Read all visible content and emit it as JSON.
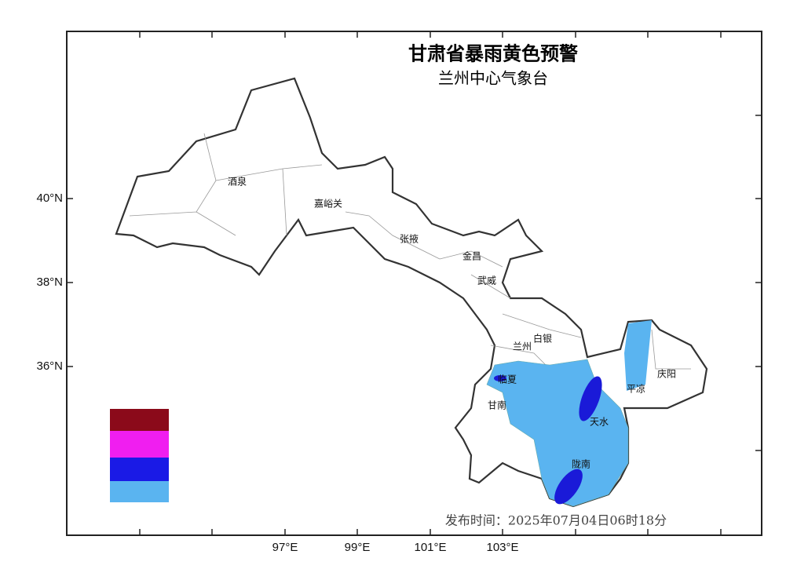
{
  "header": {
    "title": "甘肃省暴雨黄色预警",
    "subtitle": "兰州中心气象台"
  },
  "axes": {
    "latitude": [
      "40°N",
      "38°N",
      "36°N"
    ],
    "longitude": [
      "97°E",
      "99°E",
      "101°E",
      "103°E"
    ]
  },
  "places": [
    "酒泉",
    "嘉峪关",
    "张掖",
    "金昌",
    "武威",
    "兰州",
    "白银",
    "临夏",
    "甘南",
    "平凉",
    "庆阳",
    "天水",
    "陇南"
  ],
  "issued": "发布时间：2025年07月04日06时18分"
}
